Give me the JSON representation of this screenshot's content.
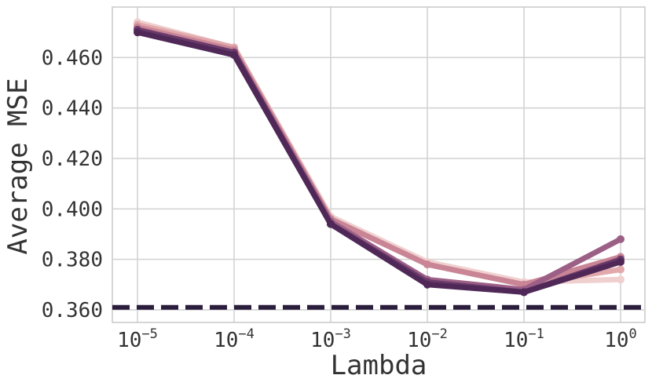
{
  "chart_data": {
    "type": "line",
    "x_tick_labels": [
      {
        "base": "10",
        "exp": "−5"
      },
      {
        "base": "10",
        "exp": "−4"
      },
      {
        "base": "10",
        "exp": "−3"
      },
      {
        "base": "10",
        "exp": "−2"
      },
      {
        "base": "10",
        "exp": "−1"
      },
      {
        "base": "10",
        "exp": "0"
      }
    ],
    "x": [
      1e-05,
      0.0001,
      0.001,
      0.01,
      0.1,
      1
    ],
    "x_scale": "log",
    "xlabel": "Lambda",
    "ylabel": "Average MSE",
    "ylim": [
      0.355,
      0.48
    ],
    "yticks": [
      0.36,
      0.38,
      0.4,
      0.42,
      0.44,
      0.46
    ],
    "ytick_labels": [
      "0.360",
      "0.380",
      "0.400",
      "0.420",
      "0.440",
      "0.460"
    ],
    "grid": true,
    "series": [
      {
        "color": "#f0cfcf",
        "values": [
          0.474,
          0.464,
          0.397,
          0.379,
          0.371,
          0.372
        ]
      },
      {
        "color": "#e2a9ad",
        "values": [
          0.473,
          0.464,
          0.396,
          0.378,
          0.37,
          0.376
        ]
      },
      {
        "color": "#c98595",
        "values": [
          0.472,
          0.463,
          0.396,
          0.378,
          0.37,
          0.381
        ]
      },
      {
        "color": "#9c5f86",
        "values": [
          0.471,
          0.462,
          0.395,
          0.372,
          0.368,
          0.388
        ]
      },
      {
        "color": "#6a3a6b",
        "values": [
          0.471,
          0.462,
          0.394,
          0.371,
          0.367,
          0.38
        ]
      },
      {
        "color": "#4f2858",
        "values": [
          0.47,
          0.461,
          0.394,
          0.37,
          0.367,
          0.379
        ]
      }
    ],
    "baseline": {
      "value": 0.361,
      "style": "dashed",
      "color": "#2b1d3c"
    }
  }
}
